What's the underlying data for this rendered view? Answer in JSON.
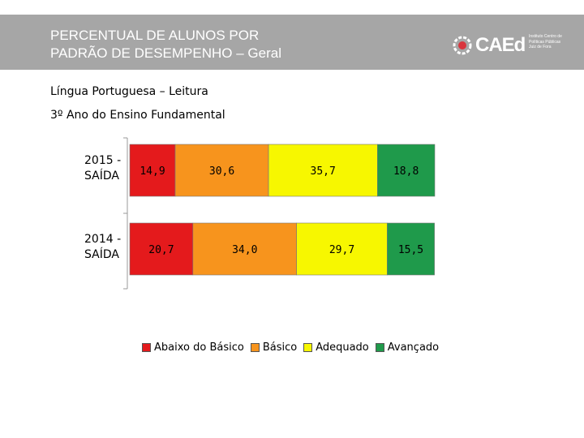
{
  "header": {
    "title_line1": "PERCENTUAL DE ALUNOS POR",
    "title_line2": "PADRÃO DE DESEMPENHO – Geral",
    "logo_text": "CAEd",
    "logo_small_line1": "Instituto Centro de",
    "logo_small_line2": "Políticas Públicas",
    "logo_small_line3": "Juiz de Fora"
  },
  "subtitle1": "Língua Portuguesa – Leitura",
  "subtitle2": "3º Ano do Ensino Fundamental",
  "colors": {
    "header_bg": "#a6a6a6",
    "abaixo": "#e41a1c",
    "basico": "#f7941d",
    "adequado": "#f7f700",
    "avancado": "#1f9a4b"
  },
  "chart_data": {
    "type": "bar",
    "orientation": "horizontal",
    "stacked": true,
    "categories": [
      "2015 - SAÍDA",
      "2014 - SAÍDA"
    ],
    "category_lines": [
      [
        "2015 -",
        "SAÍDA"
      ],
      [
        "2014 -",
        "SAÍDA"
      ]
    ],
    "series": [
      {
        "name": "Abaixo do Básico",
        "color": "#e41a1c",
        "values": [
          14.9,
          20.7
        ],
        "labels": [
          "14,9",
          "20,7"
        ]
      },
      {
        "name": "Básico",
        "color": "#f7941d",
        "values": [
          30.6,
          34.0
        ],
        "labels": [
          "30,6",
          "34,0"
        ]
      },
      {
        "name": "Adequado",
        "color": "#f7f700",
        "values": [
          35.7,
          29.7
        ],
        "labels": [
          "35,7",
          "29,7"
        ]
      },
      {
        "name": "Avançado",
        "color": "#1f9a4b",
        "values": [
          18.8,
          15.5
        ],
        "labels": [
          "18,8",
          "15,5"
        ]
      }
    ],
    "xlim": [
      0,
      100
    ],
    "legend_position": "bottom"
  }
}
